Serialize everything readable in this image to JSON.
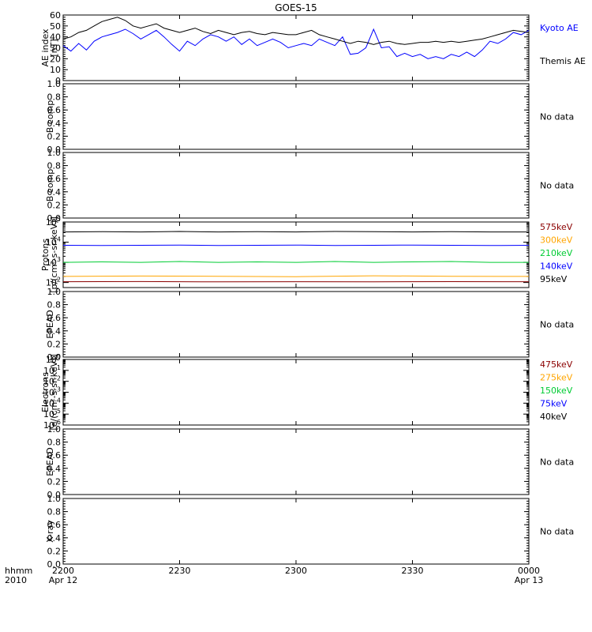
{
  "title": "GOES-15",
  "time_axis": {
    "row_label_1": "hhmm",
    "row_label_2": "2010",
    "ticks": [
      {
        "hhmm": "2200",
        "date": "Apr 12",
        "minutes": 0
      },
      {
        "hhmm": "2230",
        "date": "",
        "minutes": 30
      },
      {
        "hhmm": "2300",
        "date": "",
        "minutes": 60
      },
      {
        "hhmm": "2330",
        "date": "",
        "minutes": 90
      },
      {
        "hhmm": "0000",
        "date": "Apr 13",
        "minutes": 120
      }
    ],
    "range_minutes": [
      0,
      120
    ]
  },
  "panels": [
    {
      "id": "ae",
      "ylabel_1": "AE index",
      "ylabel_2": "[nT]",
      "type": "linear",
      "ylim": [
        0,
        60
      ],
      "yticks": [
        "0",
        "10",
        "20",
        "30",
        "40",
        "50",
        "60"
      ],
      "legend": [
        {
          "name": "Kyoto AE",
          "color": "#0000ff"
        },
        {
          "name": "Themis AE",
          "color": "#000000"
        }
      ]
    },
    {
      "id": "b1",
      "ylabel_1": "B comp",
      "ylabel_2": "",
      "type": "linear",
      "ylim": [
        0,
        1
      ],
      "yticks": [
        "0.0",
        "0.2",
        "0.4",
        "0.6",
        "0.8",
        "1.0"
      ],
      "no_data": "No data"
    },
    {
      "id": "b2",
      "ylabel_1": "B comp",
      "ylabel_2": "",
      "type": "linear",
      "ylim": [
        0,
        1
      ],
      "yticks": [
        "0.0",
        "0.2",
        "0.4",
        "0.6",
        "0.8",
        "1.0"
      ],
      "no_data": "No data"
    },
    {
      "id": "protons",
      "ylabel_1": "Protons",
      "ylabel_2": "[p/(cm²-s-sr-keV)]",
      "type": "log",
      "ylim_exp": [
        1.75,
        5
      ],
      "yticks": [
        {
          "base": "10",
          "exp": "2"
        },
        {
          "base": "10",
          "exp": "3"
        },
        {
          "base": "10",
          "exp": "4"
        },
        {
          "base": "10",
          "exp": "5"
        }
      ],
      "legend": [
        {
          "name": "575keV",
          "color": "#8b0000"
        },
        {
          "name": "300keV",
          "color": "#ffa500"
        },
        {
          "name": "210keV",
          "color": "#00cc33"
        },
        {
          "name": "140keV",
          "color": "#0000ff"
        },
        {
          "name": "95keV",
          "color": "#000000"
        }
      ]
    },
    {
      "id": "epead1",
      "ylabel_1": "EPEAD",
      "ylabel_2": "",
      "type": "linear",
      "ylim": [
        0,
        1
      ],
      "yticks": [
        "0.0",
        "0.2",
        "0.4",
        "0.6",
        "0.8",
        "1.0"
      ],
      "no_data": "No data"
    },
    {
      "id": "electrons",
      "ylabel_1": "Electrons",
      "ylabel_2": "[e/(cm²-s-sr-keV)]",
      "type": "log",
      "ylim_exp": [
        -6,
        0
      ],
      "yticks": [
        {
          "base": "10",
          "exp": "-6"
        },
        {
          "base": "10",
          "exp": "-5"
        },
        {
          "base": "10",
          "exp": "-4"
        },
        {
          "base": "10",
          "exp": "-3"
        },
        {
          "base": "10",
          "exp": "-2"
        },
        {
          "base": "10",
          "exp": "-1"
        },
        {
          "base": "10",
          "exp": "0"
        }
      ],
      "legend": [
        {
          "name": "475keV",
          "color": "#8b0000"
        },
        {
          "name": "275keV",
          "color": "#ffa500"
        },
        {
          "name": "150keV",
          "color": "#00cc33"
        },
        {
          "name": "75keV",
          "color": "#0000ff"
        },
        {
          "name": "40keV",
          "color": "#000000"
        }
      ]
    },
    {
      "id": "epead2",
      "ylabel_1": "EPEAD",
      "ylabel_2": "",
      "type": "linear",
      "ylim": [
        0,
        1
      ],
      "yticks": [
        "0.0",
        "0.2",
        "0.4",
        "0.6",
        "0.8",
        "1.0"
      ],
      "no_data": "No data"
    },
    {
      "id": "xray",
      "ylabel_1": "X-ray",
      "ylabel_2": "",
      "type": "linear",
      "ylim": [
        0,
        1
      ],
      "yticks": [
        "0.0",
        "0.2",
        "0.4",
        "0.6",
        "0.8",
        "1.0"
      ],
      "no_data": "No data"
    }
  ],
  "chart_data": {
    "type": "line",
    "title": "GOES-15",
    "x_units": "minutes since 2200 UT",
    "xlim": [
      0,
      120
    ],
    "series": [
      {
        "name": "Kyoto AE",
        "panel": "ae",
        "color": "#0000ff",
        "x": [
          0,
          2,
          4,
          6,
          8,
          10,
          12,
          14,
          16,
          18,
          20,
          22,
          24,
          26,
          28,
          30,
          32,
          34,
          36,
          38,
          40,
          42,
          44,
          46,
          48,
          50,
          52,
          54,
          56,
          58,
          60,
          62,
          64,
          66,
          68,
          70,
          72,
          74,
          76,
          78,
          80,
          82,
          84,
          86,
          88,
          90,
          92,
          94,
          96,
          98,
          100,
          102,
          104,
          106,
          108,
          110,
          112,
          114,
          116,
          118,
          120
        ],
        "y": [
          32,
          27,
          34,
          28,
          36,
          40,
          42,
          44,
          47,
          43,
          38,
          42,
          46,
          40,
          33,
          27,
          36,
          32,
          38,
          42,
          40,
          36,
          40,
          33,
          38,
          32,
          35,
          38,
          35,
          30,
          32,
          34,
          32,
          38,
          35,
          32,
          40,
          24,
          25,
          30,
          47,
          30,
          31,
          22,
          25,
          22,
          24,
          20,
          22,
          20,
          24,
          22,
          26,
          22,
          28,
          36,
          34,
          38,
          44,
          42,
          46
        ]
      },
      {
        "name": "Themis AE",
        "panel": "ae",
        "color": "#000000",
        "x": [
          0,
          2,
          4,
          6,
          8,
          10,
          12,
          14,
          16,
          18,
          20,
          22,
          24,
          26,
          28,
          30,
          32,
          34,
          36,
          38,
          40,
          42,
          44,
          46,
          48,
          50,
          52,
          54,
          56,
          58,
          60,
          62,
          64,
          66,
          68,
          70,
          72,
          74,
          76,
          78,
          80,
          82,
          84,
          86,
          88,
          90,
          92,
          94,
          96,
          98,
          100,
          102,
          104,
          106,
          108,
          110,
          112,
          114,
          116,
          118,
          120
        ],
        "y": [
          38,
          40,
          44,
          46,
          50,
          54,
          56,
          58,
          55,
          50,
          48,
          50,
          52,
          48,
          46,
          44,
          46,
          48,
          45,
          43,
          46,
          44,
          42,
          44,
          45,
          43,
          42,
          44,
          43,
          42,
          42,
          44,
          46,
          42,
          40,
          38,
          36,
          34,
          36,
          35,
          33,
          35,
          36,
          34,
          33,
          34,
          35,
          35,
          36,
          35,
          36,
          35,
          36,
          37,
          38,
          40,
          42,
          44,
          46,
          45,
          44
        ]
      },
      {
        "name": "575keV",
        "panel": "protons",
        "color": "#8b0000",
        "x": [
          0,
          20,
          40,
          60,
          80,
          100,
          120
        ],
        "y": [
          110,
          112,
          108,
          110,
          109,
          111,
          110
        ]
      },
      {
        "name": "300keV",
        "panel": "protons",
        "color": "#ffa500",
        "x": [
          0,
          20,
          40,
          60,
          80,
          100,
          120
        ],
        "y": [
          200,
          210,
          205,
          195,
          215,
          205,
          200
        ]
      },
      {
        "name": "210keV",
        "panel": "protons",
        "color": "#00cc33",
        "x": [
          0,
          10,
          20,
          30,
          40,
          50,
          60,
          70,
          80,
          90,
          100,
          110,
          120
        ],
        "y": [
          1000,
          1050,
          1000,
          1100,
          1000,
          1050,
          1000,
          1100,
          1000,
          1050,
          1100,
          1000,
          1000
        ]
      },
      {
        "name": "140keV",
        "panel": "protons",
        "color": "#0000ff",
        "x": [
          0,
          10,
          20,
          30,
          40,
          50,
          60,
          70,
          80,
          90,
          100,
          110,
          120
        ],
        "y": [
          7000,
          6800,
          7000,
          7200,
          6800,
          7000,
          7200,
          6900,
          7000,
          7200,
          7000,
          6800,
          7000
        ]
      },
      {
        "name": "95keV",
        "panel": "protons",
        "color": "#000000",
        "x": [
          0,
          10,
          20,
          30,
          40,
          50,
          60,
          70,
          80,
          90,
          100,
          110,
          120
        ],
        "y": [
          32000,
          33000,
          32000,
          34000,
          32000,
          33000,
          32000,
          34000,
          33000,
          32000,
          33000,
          32000,
          32000
        ]
      }
    ]
  }
}
